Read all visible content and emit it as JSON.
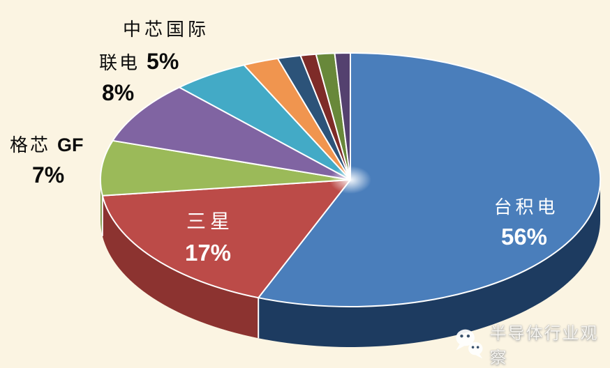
{
  "figure": {
    "kind": "3d-pie-market-share-figure",
    "background_color": "#FBF4E2"
  },
  "chart_data": {
    "type": "pie",
    "style": "3d",
    "title": "",
    "legend_position": "none",
    "start_angle_deg": 0,
    "direction": "clockwise",
    "series": [
      {
        "name": "台积电",
        "value": 56,
        "color": "#4A7EBB",
        "side_color": "#1D3B60",
        "label_placement": "inside",
        "label_color": "#FFFFFF"
      },
      {
        "name": "三星",
        "value": 17,
        "color": "#BC4B48",
        "side_color": "#8C3330",
        "label_placement": "inside",
        "label_color": "#FFFFFF"
      },
      {
        "name": "格芯 GF",
        "value": 7,
        "color": "#9BBA59",
        "side_color": "#74923F",
        "label_placement": "outside",
        "label_color": "#000000"
      },
      {
        "name": "联电",
        "value": 8,
        "color": "#8064A2",
        "label_placement": "outside",
        "label_color": "#000000"
      },
      {
        "name": "中芯国际",
        "value": 5,
        "color": "#43AAC6",
        "label_placement": "outside",
        "label_color": "#000000"
      },
      {
        "name": "",
        "value": 2.3,
        "color": "#F0954F",
        "label_placement": "none"
      },
      {
        "name": "",
        "value": 1.5,
        "color": "#2C5379",
        "label_placement": "none"
      },
      {
        "name": "",
        "value": 1.0,
        "color": "#7E2B28",
        "label_placement": "none"
      },
      {
        "name": "",
        "value": 1.2,
        "color": "#68883A",
        "label_placement": "none"
      },
      {
        "name": "",
        "value": 1.0,
        "color": "#54416F",
        "label_placement": "none"
      }
    ]
  },
  "labels": {
    "smic_name": "中芯国际",
    "smic_pct": "5%",
    "umc_name": "联电",
    "umc_pct": "8%",
    "gf_name": "格芯",
    "gf_latin": "GF",
    "gf_pct": "7%",
    "samsung_name": "三星",
    "samsung_pct": "17%",
    "tsmc_name": "台积电",
    "tsmc_pct": "56%"
  },
  "watermark": {
    "text": "半导体行业观察",
    "icon": "wechat-logo"
  }
}
